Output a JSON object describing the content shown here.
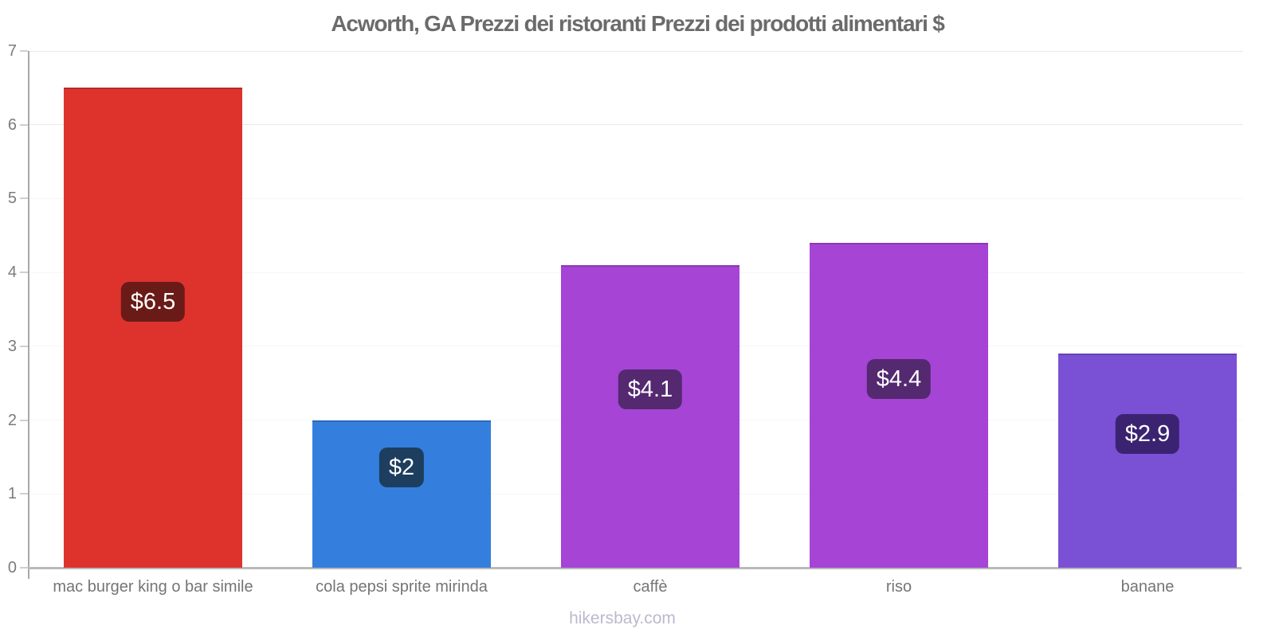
{
  "title": "Acworth, GA Prezzi dei ristoranti Prezzi dei prodotti alimentari $",
  "footer": "hikersbay.com",
  "chart_data": {
    "type": "bar",
    "title": "Acworth, GA Prezzi dei ristoranti Prezzi dei prodotti alimentari $",
    "categories": [
      "mac burger king o bar simile",
      "cola pepsi sprite mirinda",
      "caffè",
      "riso",
      "banane"
    ],
    "values": [
      6.5,
      2,
      4.1,
      4.4,
      2.9
    ],
    "value_labels": [
      "$6.5",
      "$2",
      "$4.1",
      "$4.4",
      "$2.9"
    ],
    "bar_colors": [
      "#de332d",
      "#347fdd",
      "#a644d6",
      "#a644d6",
      "#7a50d5"
    ],
    "value_label_bg": [
      "#6a1b17",
      "#1d3e5e",
      "#542970",
      "#542970",
      "#3b2372"
    ],
    "xlabel": "",
    "ylabel": "",
    "ylim": [
      0,
      7
    ],
    "yticks": [
      0,
      1,
      2,
      3,
      4,
      5,
      6,
      7
    ],
    "grid": "horizontal",
    "legend": "none",
    "currency": "$",
    "footer": "hikersbay.com"
  },
  "colors": {
    "background": "#ffffff",
    "title_text": "#6b6b6b",
    "axis_line": "#a8a8a8",
    "tick_mark": "#cfcfcf",
    "grid_strong": "#e9e9e9",
    "grid_faint": "#f6f6f6",
    "baseline": "#b9b9b9",
    "ytick_label": "#7c7c7c",
    "xtick_label": "#757575",
    "value_text": "#ffffff",
    "footer_text": "#bcb8cf"
  }
}
